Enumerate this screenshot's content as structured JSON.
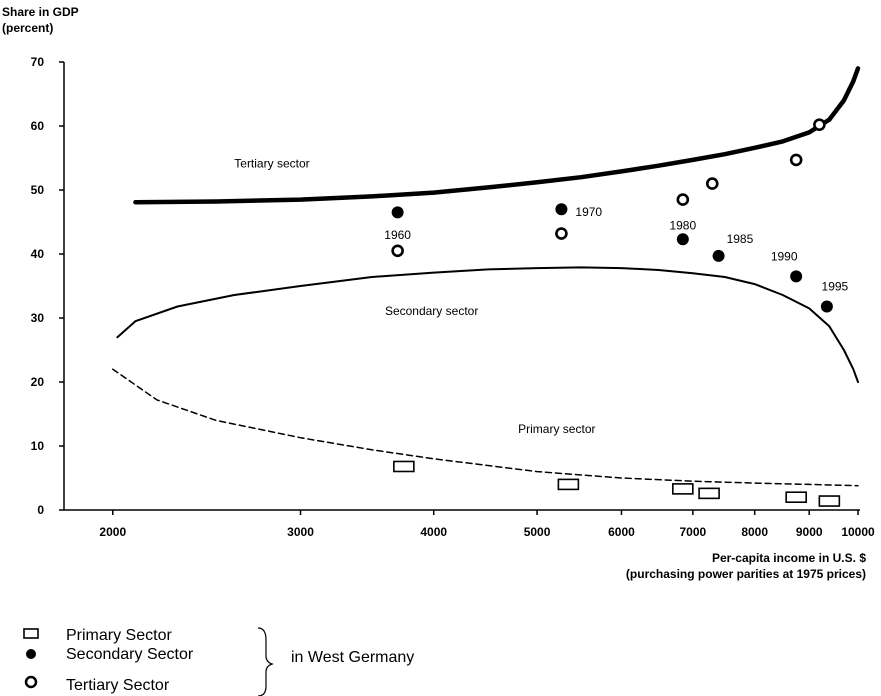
{
  "chart_data": {
    "type": "scatter",
    "ylabel_line1": "Share in GDP",
    "ylabel_line2": "(percent)",
    "xlabel_line1": "Per-capita income in U.S. $",
    "xlabel_line2": "(purchasing power parities at 1975 prices)",
    "x_scale": "log",
    "xlim": [
      1800,
      10000
    ],
    "ylim": [
      0,
      70
    ],
    "x_ticks": [
      2000,
      3000,
      4000,
      5000,
      6000,
      7000,
      8000,
      9000,
      10000
    ],
    "y_ticks": [
      0,
      10,
      20,
      30,
      40,
      50,
      60,
      70
    ],
    "curves": [
      {
        "name": "Tertiary sector",
        "style": "thick",
        "points": [
          [
            2100,
            48.1
          ],
          [
            2500,
            48.2
          ],
          [
            3000,
            48.5
          ],
          [
            3500,
            49.0
          ],
          [
            4000,
            49.6
          ],
          [
            4500,
            50.4
          ],
          [
            5000,
            51.2
          ],
          [
            5500,
            52.0
          ],
          [
            6000,
            52.9
          ],
          [
            6500,
            53.8
          ],
          [
            7000,
            54.7
          ],
          [
            7500,
            55.6
          ],
          [
            8000,
            56.6
          ],
          [
            8500,
            57.6
          ],
          [
            9000,
            59.0
          ],
          [
            9400,
            61.0
          ],
          [
            9700,
            64.0
          ],
          [
            9900,
            67.0
          ],
          [
            10000,
            69.0
          ]
        ]
      },
      {
        "name": "Secondary sector",
        "style": "thin",
        "points": [
          [
            2020,
            27.0
          ],
          [
            2100,
            29.5
          ],
          [
            2300,
            31.8
          ],
          [
            2600,
            33.6
          ],
          [
            3000,
            35.0
          ],
          [
            3500,
            36.4
          ],
          [
            4000,
            37.1
          ],
          [
            4500,
            37.6
          ],
          [
            5000,
            37.8
          ],
          [
            5500,
            37.9
          ],
          [
            6000,
            37.8
          ],
          [
            6500,
            37.5
          ],
          [
            7000,
            37.0
          ],
          [
            7500,
            36.4
          ],
          [
            8000,
            35.3
          ],
          [
            8500,
            33.6
          ],
          [
            9000,
            31.5
          ],
          [
            9400,
            28.7
          ],
          [
            9700,
            25.0
          ],
          [
            9900,
            22.0
          ],
          [
            10000,
            20.0
          ]
        ]
      },
      {
        "name": "Primary sector",
        "style": "dashed",
        "points": [
          [
            2000,
            22.0
          ],
          [
            2200,
            17.2
          ],
          [
            2500,
            14.0
          ],
          [
            3000,
            11.3
          ],
          [
            3500,
            9.4
          ],
          [
            4000,
            8.0
          ],
          [
            5000,
            6.0
          ],
          [
            6000,
            5.0
          ],
          [
            7000,
            4.5
          ],
          [
            8000,
            4.2
          ],
          [
            9000,
            4.0
          ],
          [
            10000,
            3.8
          ]
        ]
      }
    ],
    "series": [
      {
        "name": "Primary Sector",
        "marker": "open-rect",
        "points": [
          [
            3750,
            6.8
          ],
          [
            5350,
            4.0
          ],
          [
            6850,
            3.3
          ],
          [
            7250,
            2.6
          ],
          [
            8750,
            2.0
          ],
          [
            9400,
            1.4
          ]
        ]
      },
      {
        "name": "Secondary Sector",
        "marker": "filled-circle",
        "points": [
          [
            3700,
            46.5
          ],
          [
            5270,
            47.0
          ],
          [
            6850,
            42.3
          ],
          [
            7400,
            39.7
          ],
          [
            8750,
            36.5
          ],
          [
            9350,
            31.8
          ]
        ],
        "labels": [
          "",
          "1970",
          "1980",
          "1985",
          "1990",
          "1995"
        ]
      },
      {
        "name": "Tertiary Sector",
        "marker": "open-circle",
        "points": [
          [
            3700,
            40.5
          ],
          [
            5270,
            43.2
          ],
          [
            6850,
            48.5
          ],
          [
            7300,
            51.0
          ],
          [
            8750,
            54.7
          ],
          [
            9200,
            60.2
          ]
        ],
        "labels": [
          "1960",
          "",
          "",
          "",
          "",
          ""
        ]
      }
    ],
    "annotations": [
      {
        "text": "Tertiary sector",
        "x": 2600,
        "y": 53.5
      },
      {
        "text": "Secondary sector",
        "x": 3600,
        "y": 30.5
      },
      {
        "text": "Primary sector",
        "x": 4800,
        "y": 12.0
      }
    ],
    "legend": {
      "items": [
        "Primary Sector",
        "Secondary Sector",
        "Tertiary Sector"
      ],
      "group_label": "in West Germany"
    }
  }
}
